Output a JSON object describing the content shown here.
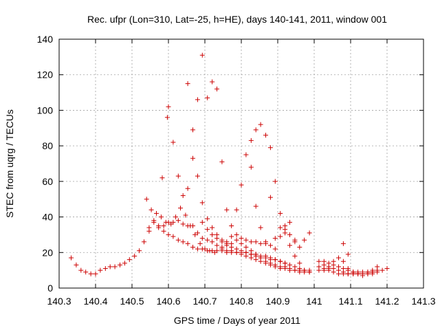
{
  "chart_data": {
    "type": "scatter",
    "title": "Rec. ufpr (Lon=310, Lat=-25, h=HE), days 140-141, 2011, window 001",
    "xlabel": "GPS time / Days of year 2011",
    "ylabel": "STEC from uqrg / TECUs",
    "xlim": [
      140.3,
      141.3
    ],
    "ylim": [
      0,
      140
    ],
    "xticks": [
      140.3,
      140.4,
      140.5,
      140.6,
      140.7,
      140.8,
      140.9,
      141.0,
      141.1,
      141.2,
      141.3
    ],
    "xtick_labels": [
      "140.3",
      "140.4",
      "140.5",
      "140.6",
      "140.7",
      "140.8",
      "140.9",
      "141",
      "141.1",
      "141.2",
      "141.3"
    ],
    "yticks": [
      0,
      20,
      40,
      60,
      80,
      100,
      120,
      140
    ],
    "ytick_labels": [
      "0",
      "20",
      "40",
      "60",
      "80",
      "100",
      "120",
      "140"
    ],
    "grid": true,
    "marker": "+",
    "color": "#cc0000",
    "points": [
      [
        140.333,
        17
      ],
      [
        140.347,
        13
      ],
      [
        140.36,
        10
      ],
      [
        140.373,
        9
      ],
      [
        140.387,
        8
      ],
      [
        140.4,
        8
      ],
      [
        140.413,
        10
      ],
      [
        140.427,
        11
      ],
      [
        140.44,
        12
      ],
      [
        140.453,
        12
      ],
      [
        140.467,
        13
      ],
      [
        140.48,
        14
      ],
      [
        140.493,
        16
      ],
      [
        140.507,
        18
      ],
      [
        140.52,
        21
      ],
      [
        140.533,
        26
      ],
      [
        140.547,
        32
      ],
      [
        140.547,
        34
      ],
      [
        140.56,
        37
      ],
      [
        140.573,
        35
      ],
      [
        140.587,
        35
      ],
      [
        140.6,
        37
      ],
      [
        140.613,
        37
      ],
      [
        140.627,
        38
      ],
      [
        140.64,
        36
      ],
      [
        140.653,
        35
      ],
      [
        140.667,
        35
      ],
      [
        140.68,
        31
      ],
      [
        140.693,
        28
      ],
      [
        140.707,
        27
      ],
      [
        140.72,
        26
      ],
      [
        140.733,
        24
      ],
      [
        140.747,
        23
      ],
      [
        140.76,
        24
      ],
      [
        140.56,
        38
      ],
      [
        140.573,
        34
      ],
      [
        140.587,
        32
      ],
      [
        140.6,
        30
      ],
      [
        140.613,
        29
      ],
      [
        140.627,
        27
      ],
      [
        140.64,
        26
      ],
      [
        140.653,
        25
      ],
      [
        140.667,
        23
      ],
      [
        140.68,
        22
      ],
      [
        140.693,
        22
      ],
      [
        140.707,
        21
      ],
      [
        140.72,
        21
      ],
      [
        140.733,
        21
      ],
      [
        140.747,
        21
      ],
      [
        140.76,
        20
      ],
      [
        140.773,
        20
      ],
      [
        140.787,
        20
      ],
      [
        140.8,
        20
      ],
      [
        140.813,
        20
      ],
      [
        140.827,
        19
      ],
      [
        140.84,
        19
      ],
      [
        140.853,
        18
      ],
      [
        140.867,
        18
      ],
      [
        140.88,
        17
      ],
      [
        140.893,
        16
      ],
      [
        140.907,
        15
      ],
      [
        140.92,
        14
      ],
      [
        140.933,
        13
      ],
      [
        140.947,
        12
      ],
      [
        140.96,
        11
      ],
      [
        140.973,
        10
      ],
      [
        140.987,
        10
      ],
      [
        140.54,
        50
      ],
      [
        140.553,
        44
      ],
      [
        140.567,
        42
      ],
      [
        140.58,
        40
      ],
      [
        140.593,
        37
      ],
      [
        140.607,
        36
      ],
      [
        140.62,
        40
      ],
      [
        140.633,
        45
      ],
      [
        140.647,
        41
      ],
      [
        140.66,
        35
      ],
      [
        140.673,
        30
      ],
      [
        140.687,
        25
      ],
      [
        140.7,
        22
      ],
      [
        140.713,
        21
      ],
      [
        140.727,
        20
      ],
      [
        140.583,
        62
      ],
      [
        140.597,
        96
      ],
      [
        140.6,
        102
      ],
      [
        140.613,
        82
      ],
      [
        140.627,
        63
      ],
      [
        140.64,
        52
      ],
      [
        140.653,
        56
      ],
      [
        140.667,
        73
      ],
      [
        140.68,
        63
      ],
      [
        140.693,
        48
      ],
      [
        140.707,
        39
      ],
      [
        140.72,
        34
      ],
      [
        140.733,
        30
      ],
      [
        140.747,
        27
      ],
      [
        140.76,
        26
      ],
      [
        140.773,
        25
      ],
      [
        140.653,
        115
      ],
      [
        140.667,
        89
      ],
      [
        140.68,
        106
      ],
      [
        140.693,
        131
      ],
      [
        140.707,
        107
      ],
      [
        140.72,
        116
      ],
      [
        140.733,
        112
      ],
      [
        140.747,
        71
      ],
      [
        140.76,
        44
      ],
      [
        140.773,
        35
      ],
      [
        140.787,
        30
      ],
      [
        140.8,
        28
      ],
      [
        140.813,
        27
      ],
      [
        140.827,
        26
      ],
      [
        140.84,
        26
      ],
      [
        140.853,
        25
      ],
      [
        140.867,
        25
      ],
      [
        140.88,
        24
      ],
      [
        140.893,
        22
      ],
      [
        140.693,
        37
      ],
      [
        140.707,
        33
      ],
      [
        140.72,
        30
      ],
      [
        140.733,
        28
      ],
      [
        140.747,
        26
      ],
      [
        140.76,
        25
      ],
      [
        140.773,
        23
      ],
      [
        140.787,
        22
      ],
      [
        140.8,
        21
      ],
      [
        140.813,
        20
      ],
      [
        140.827,
        19
      ],
      [
        140.84,
        18
      ],
      [
        140.853,
        17
      ],
      [
        140.867,
        17
      ],
      [
        140.88,
        16
      ],
      [
        140.893,
        16
      ],
      [
        140.907,
        15
      ],
      [
        140.92,
        14
      ],
      [
        140.787,
        44
      ],
      [
        140.8,
        58
      ],
      [
        140.813,
        75
      ],
      [
        140.827,
        83
      ],
      [
        140.84,
        89
      ],
      [
        140.853,
        92
      ],
      [
        140.867,
        86
      ],
      [
        140.88,
        79
      ],
      [
        140.893,
        60
      ],
      [
        140.907,
        42
      ],
      [
        140.92,
        35
      ],
      [
        140.933,
        30
      ],
      [
        140.947,
        26
      ],
      [
        140.827,
        68
      ],
      [
        140.84,
        46
      ],
      [
        140.853,
        34
      ],
      [
        140.867,
        26
      ],
      [
        140.88,
        51
      ],
      [
        140.893,
        28
      ],
      [
        140.907,
        29
      ],
      [
        140.92,
        33
      ],
      [
        140.933,
        37
      ],
      [
        140.947,
        27
      ],
      [
        140.96,
        23
      ],
      [
        140.973,
        27
      ],
      [
        140.987,
        31
      ],
      [
        140.773,
        29
      ],
      [
        140.787,
        27
      ],
      [
        140.8,
        25
      ],
      [
        140.813,
        23
      ],
      [
        140.827,
        21
      ],
      [
        140.84,
        19
      ],
      [
        140.853,
        17
      ],
      [
        140.867,
        15
      ],
      [
        140.88,
        14
      ],
      [
        140.893,
        13
      ],
      [
        140.907,
        12
      ],
      [
        140.92,
        12
      ],
      [
        140.933,
        11
      ],
      [
        140.947,
        10
      ],
      [
        140.96,
        10
      ],
      [
        140.973,
        10
      ],
      [
        140.987,
        9
      ],
      [
        140.747,
        22
      ],
      [
        140.76,
        21
      ],
      [
        140.773,
        21
      ],
      [
        140.787,
        20
      ],
      [
        140.8,
        19
      ],
      [
        140.813,
        18
      ],
      [
        140.827,
        17
      ],
      [
        140.84,
        16
      ],
      [
        140.853,
        15
      ],
      [
        140.867,
        14
      ],
      [
        140.88,
        13
      ],
      [
        140.893,
        12
      ],
      [
        140.907,
        11
      ],
      [
        140.92,
        11
      ],
      [
        140.933,
        10
      ],
      [
        140.947,
        10
      ],
      [
        140.96,
        9
      ],
      [
        140.973,
        9
      ],
      [
        140.987,
        9
      ],
      [
        140.907,
        34
      ],
      [
        140.92,
        31
      ],
      [
        140.933,
        24
      ],
      [
        140.947,
        18
      ],
      [
        140.96,
        14
      ],
      [
        141.013,
        15
      ],
      [
        141.027,
        15
      ],
      [
        141.04,
        14
      ],
      [
        141.053,
        13
      ],
      [
        141.067,
        12
      ],
      [
        141.08,
        11
      ],
      [
        141.093,
        10
      ],
      [
        141.107,
        9
      ],
      [
        141.12,
        9
      ],
      [
        141.133,
        9
      ],
      [
        141.147,
        9
      ],
      [
        141.16,
        10
      ],
      [
        141.173,
        10
      ],
      [
        141.187,
        10
      ],
      [
        141.2,
        11
      ],
      [
        141.013,
        12
      ],
      [
        141.027,
        11
      ],
      [
        141.04,
        10
      ],
      [
        141.053,
        9
      ],
      [
        141.067,
        8
      ],
      [
        141.08,
        8
      ],
      [
        141.093,
        8
      ],
      [
        141.107,
        8
      ],
      [
        141.12,
        8
      ],
      [
        141.133,
        8
      ],
      [
        141.147,
        9
      ],
      [
        141.16,
        9
      ],
      [
        141.173,
        9
      ],
      [
        141.013,
        10
      ],
      [
        141.027,
        10
      ],
      [
        141.04,
        11
      ],
      [
        141.053,
        15
      ],
      [
        141.067,
        17
      ],
      [
        141.08,
        25
      ],
      [
        141.093,
        19
      ],
      [
        141.027,
        13
      ],
      [
        141.04,
        12
      ],
      [
        141.053,
        11
      ],
      [
        141.067,
        10
      ],
      [
        141.08,
        9
      ],
      [
        141.093,
        8
      ],
      [
        141.107,
        8
      ],
      [
        141.12,
        8
      ],
      [
        141.133,
        8
      ],
      [
        141.147,
        8
      ],
      [
        141.16,
        9
      ],
      [
        141.173,
        12
      ],
      [
        141.08,
        15
      ],
      [
        141.093,
        11
      ],
      [
        141.107,
        9
      ],
      [
        141.12,
        8
      ],
      [
        141.133,
        7
      ],
      [
        141.147,
        8
      ],
      [
        141.16,
        8
      ]
    ]
  }
}
